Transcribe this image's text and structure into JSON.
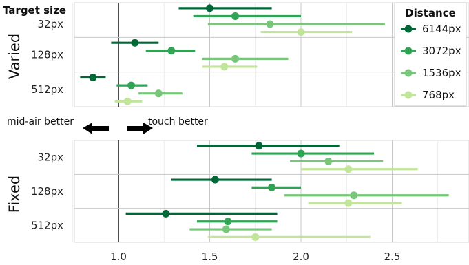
{
  "chart_data": {
    "type": "scatter",
    "subtype": "dot-and-whisker",
    "xlim": [
      0.75,
      2.85
    ],
    "x_ticks": [
      "1.0",
      "1.5",
      "2.0",
      "2.5"
    ],
    "x_tick_values": [
      1.0,
      1.5,
      2.0,
      2.5
    ],
    "reference_line": 1.0,
    "grid": true,
    "categories": [
      "32px",
      "128px",
      "512px"
    ],
    "category_header": "Target size",
    "panels": [
      {
        "name": "Varied",
        "rows": [
          {
            "category": "32px",
            "series": [
              {
                "series": "6144px",
                "x": 1.5,
                "lo": 1.33,
                "hi": 1.84
              },
              {
                "series": "3072px",
                "x": 1.64,
                "lo": 1.41,
                "hi": 2.0
              },
              {
                "series": "1536px",
                "x": 1.83,
                "lo": 1.49,
                "hi": 2.46
              },
              {
                "series": "768px",
                "x": 2.0,
                "lo": 1.78,
                "hi": 2.28
              }
            ]
          },
          {
            "category": "128px",
            "series": [
              {
                "series": "6144px",
                "x": 1.09,
                "lo": 0.96,
                "hi": 1.22
              },
              {
                "series": "3072px",
                "x": 1.29,
                "lo": 1.15,
                "hi": 1.42
              },
              {
                "series": "1536px",
                "x": 1.64,
                "lo": 1.46,
                "hi": 1.93
              },
              {
                "series": "768px",
                "x": 1.58,
                "lo": 1.46,
                "hi": 1.76
              }
            ]
          },
          {
            "category": "512px",
            "series": [
              {
                "series": "6144px",
                "x": 0.86,
                "lo": 0.79,
                "hi": 0.93
              },
              {
                "series": "3072px",
                "x": 1.07,
                "lo": 0.99,
                "hi": 1.16
              },
              {
                "series": "1536px",
                "x": 1.22,
                "lo": 1.11,
                "hi": 1.35
              },
              {
                "series": "768px",
                "x": 1.05,
                "lo": 0.98,
                "hi": 1.13
              }
            ]
          }
        ]
      },
      {
        "name": "Fixed",
        "rows": [
          {
            "category": "32px",
            "series": [
              {
                "series": "6144px",
                "x": 1.77,
                "lo": 1.43,
                "hi": 2.21
              },
              {
                "series": "3072px",
                "x": 2.0,
                "lo": 1.73,
                "hi": 2.4
              },
              {
                "series": "1536px",
                "x": 2.15,
                "lo": 1.94,
                "hi": 2.45
              },
              {
                "series": "768px",
                "x": 2.26,
                "lo": 2.0,
                "hi": 2.64
              }
            ]
          },
          {
            "category": "128px",
            "series": [
              {
                "series": "6144px",
                "x": 1.53,
                "lo": 1.29,
                "hi": 1.84
              },
              {
                "series": "3072px",
                "x": 1.84,
                "lo": 1.73,
                "hi": 2.0
              },
              {
                "series": "1536px",
                "x": 2.29,
                "lo": 1.91,
                "hi": 2.81
              },
              {
                "series": "768px",
                "x": 2.26,
                "lo": 2.04,
                "hi": 2.55
              }
            ]
          },
          {
            "category": "512px",
            "series": [
              {
                "series": "6144px",
                "x": 1.26,
                "lo": 1.04,
                "hi": 1.87
              },
              {
                "series": "3072px",
                "x": 1.6,
                "lo": 1.43,
                "hi": 1.87
              },
              {
                "series": "1536px",
                "x": 1.59,
                "lo": 1.39,
                "hi": 1.84
              },
              {
                "series": "768px",
                "x": 1.75,
                "lo": 1.49,
                "hi": 2.38
              }
            ]
          }
        ]
      }
    ],
    "legend": {
      "title": "Distance",
      "placement": "top-right",
      "entries": [
        {
          "name": "6144px",
          "color": "#006837"
        },
        {
          "name": "3072px",
          "color": "#31a354"
        },
        {
          "name": "1536px",
          "color": "#78c679"
        },
        {
          "name": "768px",
          "color": "#c2e699"
        }
      ]
    },
    "annotations": {
      "left": "mid-air better",
      "right": "touch better"
    }
  }
}
